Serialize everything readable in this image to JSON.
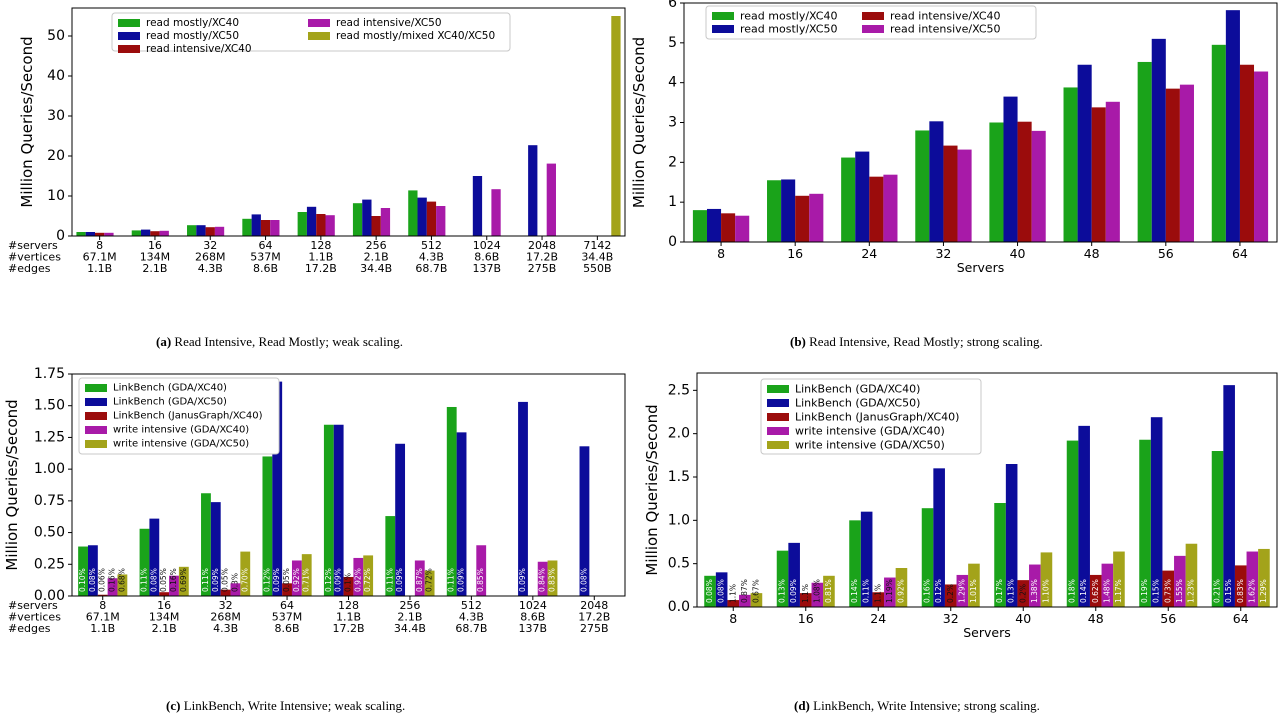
{
  "colors": {
    "green": "#1aa31a",
    "blue": "#0c0c9a",
    "darkred": "#9b0c0c",
    "purple": "#a81aa8",
    "olive": "#a3a31a"
  },
  "charts": [
    {
      "id": "a",
      "caption_label": "(a)",
      "caption_text": "Read Intensive, Read Mostly; weak scaling.",
      "chart_data": {
        "type": "bar",
        "ylabel": "Million Queries/Second",
        "xlabel": "",
        "ylim": [
          0,
          57
        ],
        "yticks": [
          0,
          10,
          20,
          30,
          40,
          50
        ],
        "ytick_labels": [
          "0",
          "10",
          "20",
          "30",
          "40",
          "50"
        ],
        "row_labels": [
          "#servers",
          "#vertices",
          "#edges"
        ],
        "categories": [
          [
            "8",
            "67.1M",
            "1.1B"
          ],
          [
            "16",
            "134M",
            "2.1B"
          ],
          [
            "32",
            "268M",
            "4.3B"
          ],
          [
            "64",
            "537M",
            "8.6B"
          ],
          [
            "128",
            "1.1B",
            "17.2B"
          ],
          [
            "256",
            "2.1B",
            "34.4B"
          ],
          [
            "512",
            "4.3B",
            "68.7B"
          ],
          [
            "1024",
            "8.6B",
            "137B"
          ],
          [
            "2048",
            "17.2B",
            "275B"
          ],
          [
            "7142",
            "34.4B",
            "550B"
          ]
        ],
        "series": [
          {
            "name": "read mostly/XC40",
            "color": "#1aa31a",
            "values": [
              1.0,
              1.4,
              2.7,
              4.3,
              6.0,
              8.2,
              11.4,
              null,
              null,
              null
            ]
          },
          {
            "name": "read mostly/XC50",
            "color": "#0c0c9a",
            "values": [
              1.0,
              1.6,
              2.7,
              5.4,
              7.3,
              9.1,
              9.6,
              15.0,
              22.7,
              null
            ]
          },
          {
            "name": "read intensive/XC40",
            "color": "#9b0c0c",
            "values": [
              0.8,
              1.2,
              2.2,
              4.0,
              5.5,
              5.0,
              8.6,
              null,
              null,
              null
            ]
          },
          {
            "name": "read intensive/XC50",
            "color": "#a81aa8",
            "values": [
              0.8,
              1.3,
              2.3,
              4.0,
              5.2,
              7.0,
              7.5,
              11.7,
              18.1,
              null
            ]
          },
          {
            "name": "read mostly/mixed XC40/XC50",
            "color": "#a3a31a",
            "values": [
              null,
              null,
              null,
              null,
              null,
              null,
              null,
              null,
              null,
              55.0
            ]
          }
        ],
        "legend": {
          "position": "top-left",
          "columns": 2
        },
        "bar_labels": []
      }
    },
    {
      "id": "b",
      "caption_label": "(b)",
      "caption_text": "Read Intensive, Read Mostly; strong scaling.",
      "chart_data": {
        "type": "bar",
        "ylabel": "Million Queries/Second",
        "xlabel": "Servers",
        "ylim": [
          0,
          6
        ],
        "yticks": [
          0,
          1,
          2,
          3,
          4,
          5,
          6
        ],
        "ytick_labels": [
          "0",
          "1",
          "2",
          "3",
          "4",
          "5",
          "6"
        ],
        "row_labels": [],
        "categories": [
          [
            "8"
          ],
          [
            "16"
          ],
          [
            "24"
          ],
          [
            "32"
          ],
          [
            "40"
          ],
          [
            "48"
          ],
          [
            "56"
          ],
          [
            "64"
          ]
        ],
        "series": [
          {
            "name": "read mostly/XC40",
            "color": "#1aa31a",
            "values": [
              0.8,
              1.55,
              2.12,
              2.8,
              3.0,
              3.88,
              4.52,
              4.95
            ]
          },
          {
            "name": "read mostly/XC50",
            "color": "#0c0c9a",
            "values": [
              0.83,
              1.57,
              2.27,
              3.03,
              3.65,
              4.45,
              5.1,
              5.82
            ]
          },
          {
            "name": "read intensive/XC40",
            "color": "#9b0c0c",
            "values": [
              0.72,
              1.16,
              1.64,
              2.42,
              3.02,
              3.38,
              3.85,
              4.45
            ]
          },
          {
            "name": "read intensive/XC50",
            "color": "#a81aa8",
            "values": [
              0.66,
              1.21,
              1.69,
              2.32,
              2.79,
              3.52,
              3.95,
              4.28
            ]
          }
        ],
        "legend": {
          "position": "top-left",
          "columns": 2
        },
        "bar_labels": []
      }
    },
    {
      "id": "c",
      "caption_label": "(c)",
      "caption_text": "LinkBench, Write Intensive; weak scaling.",
      "chart_data": {
        "type": "bar",
        "ylabel": "Million Queries/Second",
        "xlabel": "",
        "ylim": [
          0,
          1.75
        ],
        "yticks": [
          0,
          0.25,
          0.5,
          0.75,
          1.0,
          1.25,
          1.5,
          1.75
        ],
        "ytick_labels": [
          "0.00",
          "0.25",
          "0.50",
          "0.75",
          "1.00",
          "1.25",
          "1.50",
          "1.75"
        ],
        "row_labels": [
          "#servers",
          "#vertices",
          "#edges"
        ],
        "categories": [
          [
            "8",
            "67.1M",
            "1.1B"
          ],
          [
            "16",
            "134M",
            "2.1B"
          ],
          [
            "32",
            "268M",
            "4.3B"
          ],
          [
            "64",
            "537M",
            "8.6B"
          ],
          [
            "128",
            "1.1B",
            "17.2B"
          ],
          [
            "256",
            "2.1B",
            "34.4B"
          ],
          [
            "512",
            "4.3B",
            "68.7B"
          ],
          [
            "1024",
            "8.6B",
            "137B"
          ],
          [
            "2048",
            "17.2B",
            "275B"
          ]
        ],
        "series": [
          {
            "name": "LinkBench (GDA/XC40)",
            "color": "#1aa31a",
            "values": [
              0.39,
              0.53,
              0.81,
              1.1,
              1.35,
              0.63,
              1.49,
              null,
              null
            ]
          },
          {
            "name": "LinkBench (GDA/XC50)",
            "color": "#0c0c9a",
            "values": [
              0.4,
              0.61,
              0.74,
              1.69,
              1.35,
              1.2,
              1.29,
              1.53,
              1.18
            ]
          },
          {
            "name": "LinkBench (JanusGraph/XC40)",
            "color": "#9b0c0c",
            "values": [
              0.01,
              0.03,
              0.05,
              0.1,
              0.15,
              null,
              null,
              null,
              null
            ]
          },
          {
            "name": "write intensive (GDA/XC40)",
            "color": "#a81aa8",
            "values": [
              0.14,
              0.16,
              0.1,
              0.28,
              0.3,
              0.28,
              0.4,
              0.27,
              null
            ]
          },
          {
            "name": "write intensive (GDA/XC50)",
            "color": "#a3a31a",
            "values": [
              0.17,
              0.23,
              0.35,
              0.33,
              0.32,
              0.2,
              null,
              0.28,
              null
            ]
          }
        ],
        "legend": {
          "position": "top-left",
          "columns": 1
        },
        "bar_labels": [
          [
            "0.10%",
            "0.08%",
            "0.06%",
            "0.16%",
            "0.68%"
          ],
          [
            "0.11%",
            "0.08%",
            "0.05%",
            "0.16%",
            "0.69%"
          ],
          [
            "0.11%",
            "0.09%",
            "0.05%",
            "0.3%",
            "0.70%"
          ],
          [
            "0.12%",
            "0.09%",
            "0.05%",
            "0.92%",
            "0.71%"
          ],
          [
            "0.12%",
            "0.09%",
            "0.1%",
            "0.92%",
            "0.72%"
          ],
          [
            "0.11%",
            "0.09%",
            "",
            "0.87%",
            "0.72%"
          ],
          [
            "0.11%",
            "0.09%",
            "",
            "0.85%",
            "0.69%"
          ],
          [
            "",
            "0.09%",
            "",
            "0.84%",
            "0.83%"
          ],
          [
            "",
            "0.08%",
            "",
            "",
            ""
          ]
        ]
      }
    },
    {
      "id": "d",
      "caption_label": "(d)",
      "caption_text": "LinkBench, Write Intensive; strong scaling.",
      "chart_data": {
        "type": "bar",
        "ylabel": "Million Queries/Second",
        "xlabel": "Servers",
        "ylim": [
          0,
          2.7
        ],
        "yticks": [
          0,
          0.5,
          1.0,
          1.5,
          2.0,
          2.5
        ],
        "ytick_labels": [
          "0.0",
          "0.5",
          "1.0",
          "1.5",
          "2.0",
          "2.5"
        ],
        "row_labels": [],
        "categories": [
          [
            "8"
          ],
          [
            "16"
          ],
          [
            "24"
          ],
          [
            "32"
          ],
          [
            "40"
          ],
          [
            "48"
          ],
          [
            "56"
          ],
          [
            "64"
          ]
        ],
        "series": [
          {
            "name": "LinkBench (GDA/XC40)",
            "color": "#1aa31a",
            "values": [
              0.36,
              0.65,
              1.0,
              1.14,
              1.2,
              1.92,
              1.93,
              1.8
            ]
          },
          {
            "name": "LinkBench (GDA/XC50)",
            "color": "#0c0c9a",
            "values": [
              0.4,
              0.74,
              1.1,
              1.6,
              1.65,
              2.09,
              2.19,
              2.56
            ]
          },
          {
            "name": "LinkBench (JanusGraph/XC40)",
            "color": "#9b0c0c",
            "values": [
              0.08,
              0.16,
              0.17,
              0.26,
              0.31,
              0.37,
              0.42,
              0.48
            ]
          },
          {
            "name": "write intensive (GDA/XC40)",
            "color": "#a81aa8",
            "values": [
              0.14,
              0.28,
              0.34,
              0.37,
              0.49,
              0.5,
              0.59,
              0.64
            ]
          },
          {
            "name": "write intensive (GDA/XC50)",
            "color": "#a3a31a",
            "values": [
              0.16,
              0.36,
              0.45,
              0.5,
              0.63,
              0.64,
              0.73,
              0.67
            ]
          }
        ],
        "legend": {
          "position": "top-left",
          "columns": 1
        },
        "bar_labels": [
          [
            "0.08%",
            "0.08%",
            "1.1%",
            "0.87%",
            "0.67%"
          ],
          [
            "0.13%",
            "0.09%",
            "1.1%",
            "1.08%",
            "0.81%"
          ],
          [
            "0.14%",
            "0.11%",
            "1.1%",
            "1.19%",
            "0.92%"
          ],
          [
            "0.16%",
            "0.12%",
            "0.2%",
            "1.29%",
            "1.01%"
          ],
          [
            "0.17%",
            "0.13%",
            "0.2%",
            "1.38%",
            "1.10%"
          ],
          [
            "0.18%",
            "0.14%",
            "0.62%",
            "1.48%",
            "1.17%"
          ],
          [
            "0.19%",
            "0.15%",
            "0.73%",
            "1.55%",
            "1.23%"
          ],
          [
            "0.21%",
            "0.15%",
            "0.83%",
            "1.62%",
            "1.29%"
          ]
        ]
      }
    }
  ]
}
